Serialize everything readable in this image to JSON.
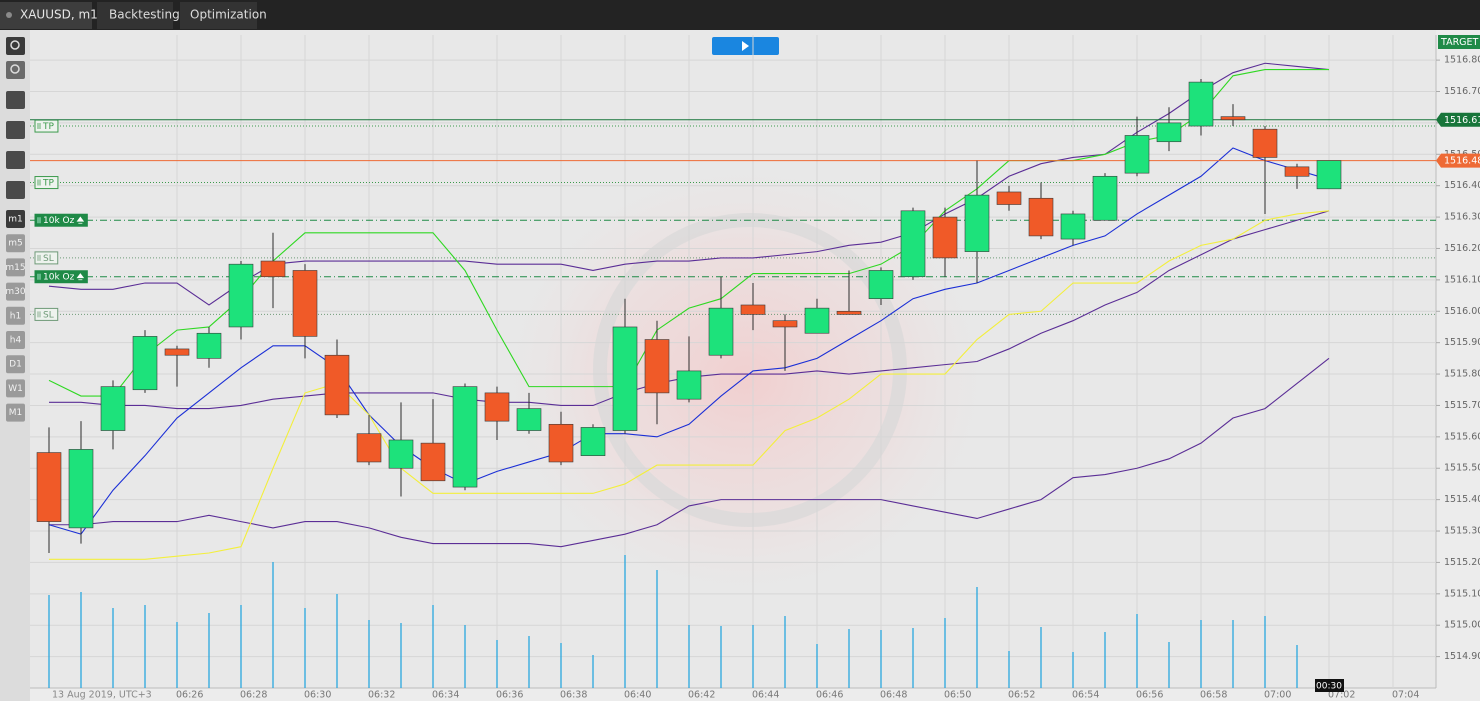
{
  "tabs": [
    "XAUUSD, m1",
    "Backtesting",
    "Optimization"
  ],
  "timeframes": [
    "m1",
    "m5",
    "m15",
    "m30",
    "h1",
    "h4",
    "D1",
    "W1",
    "M1"
  ],
  "chart_data": {
    "type": "candlestick",
    "date_label": "13 Aug 2019, UTC+3",
    "categories": [
      null,
      null,
      null,
      null,
      "06:26",
      null,
      "06:28",
      null,
      "06:30",
      null,
      "06:32",
      null,
      "06:34",
      null,
      "06:36",
      null,
      "06:38",
      null,
      "06:40",
      null,
      "06:42",
      null,
      "06:44",
      null,
      "06:46",
      null,
      "06:48",
      null,
      "06:50",
      null,
      "06:52",
      null,
      "06:54",
      null,
      "06:56",
      null,
      "06:58",
      null,
      "07:00",
      null,
      "07:02",
      null,
      "07:04"
    ],
    "open": [
      1515.55,
      1515.31,
      1515.62,
      1515.75,
      1515.88,
      1515.85,
      1515.95,
      1516.16,
      1516.13,
      1515.86,
      1515.61,
      1515.5,
      1515.58,
      1515.44,
      1515.74,
      1515.62,
      1515.64,
      1515.54,
      1515.62,
      1515.91,
      1515.72,
      1515.86,
      1516.02,
      1515.97,
      1515.93,
      1516.0,
      1516.04,
      1516.11,
      1516.3,
      1516.19,
      1516.38,
      1516.36,
      1516.23,
      1516.29,
      1516.44,
      1516.54,
      1516.59,
      1516.62,
      1516.58,
      1516.46,
      1516.39,
      null,
      null
    ],
    "high": [
      1515.63,
      1515.65,
      1515.78,
      1515.94,
      1515.89,
      1515.95,
      1516.16,
      1516.25,
      1516.15,
      1515.91,
      1515.67,
      1515.71,
      1515.72,
      1515.77,
      1515.76,
      1515.74,
      1515.68,
      1515.64,
      1516.04,
      1515.97,
      1515.92,
      1516.11,
      1516.09,
      1515.99,
      1516.04,
      1516.13,
      1516.14,
      1516.33,
      1516.33,
      1516.48,
      1516.4,
      1516.41,
      1516.32,
      1516.44,
      1516.62,
      1516.65,
      1516.74,
      1516.66,
      1516.59,
      1516.47,
      1516.48,
      null,
      null
    ],
    "low": [
      1515.23,
      1515.26,
      1515.56,
      1515.74,
      1515.76,
      1515.82,
      1515.91,
      1516.01,
      1515.85,
      1515.66,
      1515.51,
      1515.41,
      1515.46,
      1515.43,
      1515.59,
      1515.61,
      1515.51,
      1515.54,
      1515.61,
      1515.64,
      1515.71,
      1515.85,
      1515.94,
      1515.81,
      1515.93,
      1515.99,
      1516.02,
      1516.1,
      1516.11,
      1516.09,
      1516.32,
      1516.23,
      1516.21,
      1516.29,
      1516.43,
      1516.51,
      1516.56,
      1516.59,
      1516.31,
      1516.39,
      1516.39,
      null,
      null
    ],
    "close": [
      1515.33,
      1515.56,
      1515.76,
      1515.92,
      1515.86,
      1515.93,
      1516.15,
      1516.11,
      1515.92,
      1515.67,
      1515.52,
      1515.59,
      1515.46,
      1515.76,
      1515.65,
      1515.69,
      1515.52,
      1515.63,
      1515.95,
      1515.74,
      1515.81,
      1516.01,
      1515.99,
      1515.95,
      1516.01,
      1515.99,
      1516.13,
      1516.32,
      1516.17,
      1516.37,
      1516.34,
      1516.24,
      1516.31,
      1516.43,
      1516.56,
      1516.6,
      1516.73,
      1516.61,
      1516.49,
      1516.43,
      1516.48,
      null,
      null
    ],
    "up_color": "#1de27b",
    "down_color": "#f05a28",
    "volume": [
      93,
      96,
      80,
      83,
      66,
      75,
      83,
      126,
      80,
      94,
      68,
      65,
      83,
      63,
      48,
      52,
      45,
      33,
      133,
      118,
      63,
      62,
      63,
      72,
      44,
      59,
      58,
      60,
      70,
      101,
      37,
      61,
      36,
      56,
      74,
      46,
      68,
      68,
      72,
      43,
      null,
      null,
      null
    ],
    "volume_color": "#2aa7de",
    "indicators": [
      {
        "color": "#5b2e96",
        "values": [
          1516.08,
          1516.07,
          1516.07,
          1516.09,
          1516.09,
          1516.02,
          1516.09,
          1516.15,
          1516.16,
          1516.16,
          1516.16,
          1516.16,
          1516.16,
          1516.16,
          1516.15,
          1516.15,
          1516.15,
          1516.13,
          1516.15,
          1516.16,
          1516.16,
          1516.17,
          1516.17,
          1516.18,
          1516.19,
          1516.21,
          1516.22,
          1516.25,
          1516.31,
          1516.36,
          1516.43,
          1516.47,
          1516.49,
          1516.5,
          1516.57,
          1516.63,
          1516.7,
          1516.76,
          1516.79,
          1516.78,
          1516.77,
          null,
          null
        ]
      },
      {
        "color": "#5b2e96",
        "values": [
          1515.71,
          1515.71,
          1515.7,
          1515.7,
          1515.69,
          1515.69,
          1515.7,
          1515.72,
          1515.73,
          1515.74,
          1515.74,
          1515.74,
          1515.74,
          1515.72,
          1515.71,
          1515.71,
          1515.7,
          1515.7,
          1515.74,
          1515.77,
          1515.79,
          1515.8,
          1515.8,
          1515.8,
          1515.81,
          1515.8,
          1515.81,
          1515.82,
          1515.83,
          1515.84,
          1515.88,
          1515.93,
          1515.97,
          1516.02,
          1516.06,
          1516.13,
          1516.18,
          1516.23,
          1516.26,
          1516.29,
          1516.32,
          null,
          null
        ]
      },
      {
        "color": "#5b2e96",
        "values": [
          1515.32,
          1515.32,
          1515.33,
          1515.33,
          1515.33,
          1515.35,
          1515.33,
          1515.31,
          1515.33,
          1515.33,
          1515.31,
          1515.28,
          1515.26,
          1515.26,
          1515.26,
          1515.26,
          1515.25,
          1515.27,
          1515.29,
          1515.32,
          1515.38,
          1515.4,
          1515.4,
          1515.4,
          1515.4,
          1515.4,
          1515.4,
          1515.38,
          1515.36,
          1515.34,
          1515.37,
          1515.4,
          1515.47,
          1515.48,
          1515.5,
          1515.53,
          1515.58,
          1515.66,
          1515.69,
          1515.77,
          1515.85,
          null,
          null
        ]
      },
      {
        "color": "#1b2fd6",
        "values": [
          1515.32,
          1515.29,
          1515.43,
          1515.54,
          1515.66,
          1515.74,
          1515.82,
          1515.89,
          1515.89,
          1515.82,
          1515.67,
          1515.57,
          1515.5,
          1515.45,
          1515.49,
          1515.52,
          1515.55,
          1515.61,
          1515.61,
          1515.6,
          1515.64,
          1515.73,
          1515.81,
          1515.82,
          1515.85,
          1515.91,
          1515.97,
          1516.04,
          1516.07,
          1516.09,
          1516.13,
          1516.17,
          1516.21,
          1516.24,
          1516.31,
          1516.37,
          1516.43,
          1516.52,
          1516.48,
          1516.45,
          1516.42,
          null,
          null
        ]
      },
      {
        "color": "#2fd822",
        "values": [
          1515.78,
          1515.73,
          1515.73,
          1515.86,
          1515.94,
          1515.95,
          1516.04,
          1516.16,
          1516.25,
          1516.25,
          1516.25,
          1516.25,
          1516.25,
          1516.13,
          1515.94,
          1515.76,
          1515.76,
          1515.76,
          1515.76,
          1515.94,
          1516.01,
          1516.04,
          1516.12,
          1516.12,
          1516.12,
          1516.12,
          1516.15,
          1516.21,
          1516.32,
          1516.39,
          1516.48,
          1516.48,
          1516.48,
          1516.5,
          1516.54,
          1516.56,
          1516.63,
          1516.75,
          1516.77,
          1516.77,
          1516.77,
          null,
          null
        ]
      },
      {
        "color": "#f3ef3c",
        "values": [
          1515.21,
          1515.21,
          1515.21,
          1515.21,
          1515.22,
          1515.23,
          1515.25,
          1515.5,
          1515.74,
          1515.77,
          1515.67,
          1515.5,
          1515.42,
          1515.42,
          1515.42,
          1515.42,
          1515.42,
          1515.42,
          1515.45,
          1515.51,
          1515.51,
          1515.51,
          1515.51,
          1515.62,
          1515.66,
          1515.72,
          1515.8,
          1515.8,
          1515.8,
          1515.91,
          1515.99,
          1516.0,
          1516.09,
          1516.09,
          1516.09,
          1516.16,
          1516.21,
          1516.23,
          1516.29,
          1516.31,
          1516.32,
          null,
          null
        ]
      }
    ],
    "levels": [
      {
        "label": "TP",
        "value": 1516.59,
        "color": "#3c9a4c",
        "line": "dotted",
        "filled": false
      },
      {
        "label": "TP",
        "value": 1516.41,
        "color": "#3c9a4c",
        "line": "dotted",
        "filled": false
      },
      {
        "label": "10k Oz",
        "value": 1516.29,
        "color": "#1f8a47",
        "line": "dashdot",
        "filled": true
      },
      {
        "label": "SL",
        "value": 1516.17,
        "color": "#6f9a78",
        "line": "dotted",
        "filled": false
      },
      {
        "label": "10k Oz",
        "value": 1516.11,
        "color": "#1f8a47",
        "line": "dashdot",
        "filled": true
      },
      {
        "label": "SL",
        "value": 1515.99,
        "color": "#6f9a78",
        "line": "dotted",
        "filled": false
      }
    ],
    "price_lines": [
      {
        "value": 1516.61,
        "color": "#17753a"
      },
      {
        "value": 1516.48,
        "color": "#ee6a35"
      }
    ],
    "target_label": "TARGET",
    "countdown": "00:30",
    "ylim": [
      1514.8,
      1516.88
    ],
    "yticks": [
      {
        "value": 1514.9,
        "label": "1514.90"
      },
      {
        "value": 1515,
        "label": "1515.00"
      },
      {
        "value": 1515.1,
        "label": "1515.10"
      },
      {
        "value": 1515.2,
        "label": "1515.20"
      },
      {
        "value": 1515.3,
        "label": "1515.30"
      },
      {
        "value": 1515.4,
        "label": "1515.40"
      },
      {
        "value": 1515.5,
        "label": "1515.50"
      },
      {
        "value": 1515.6,
        "label": "1515.60"
      },
      {
        "value": 1515.7,
        "label": "1515.70"
      },
      {
        "value": 1515.8,
        "label": "1515.80"
      },
      {
        "value": 1515.9,
        "label": "1515.90"
      },
      {
        "value": 1516,
        "label": "1516.00"
      },
      {
        "value": 1516.1,
        "label": "1516.10"
      },
      {
        "value": 1516.2,
        "label": "1516.20"
      },
      {
        "value": 1516.3,
        "label": "1516.30"
      },
      {
        "value": 1516.4,
        "label": "1516.40"
      },
      {
        "value": 1516.5,
        "label": "1516.50"
      },
      {
        "value": 1516.6,
        "label": "1516.60"
      },
      {
        "value": 1516.7,
        "label": "1516.70"
      },
      {
        "value": 1516.8,
        "label": "1516.80"
      }
    ],
    "grid": true
  }
}
